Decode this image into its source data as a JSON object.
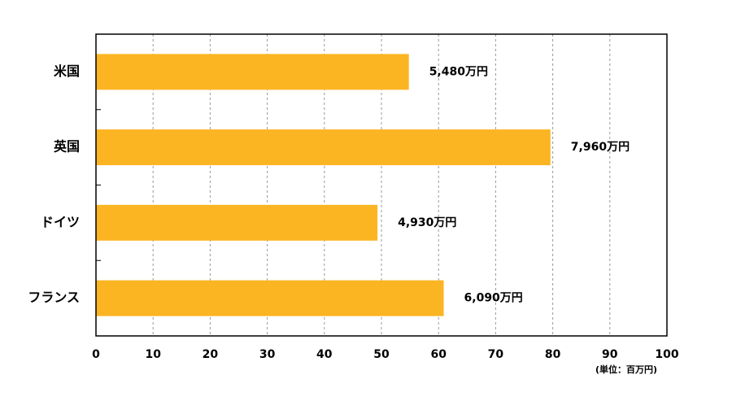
{
  "chart_data": {
    "type": "barh",
    "categories": [
      "米国",
      "英国",
      "ドイツ",
      "フランス"
    ],
    "values": [
      54.8,
      79.6,
      49.3,
      60.9
    ],
    "value_labels": [
      "5,480万円",
      "7,960万円",
      "4,930万円",
      "6,090万円"
    ],
    "color": "#fbb523",
    "xlim": [
      0,
      100
    ],
    "xticks": [
      0,
      10,
      20,
      30,
      40,
      50,
      60,
      70,
      80,
      90,
      100
    ],
    "xlabel": "(単位：百万円)",
    "grid": true
  }
}
